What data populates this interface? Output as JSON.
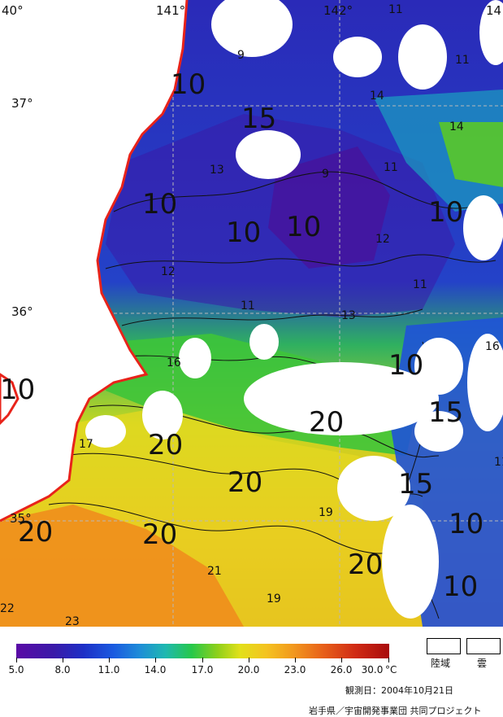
{
  "map": {
    "lon_labels": [
      "40°",
      "141°",
      "142°",
      "14"
    ],
    "lat_labels": [
      "37°",
      "36°",
      "35°"
    ],
    "big_labels": [
      "10",
      "15",
      "10",
      "10",
      "10",
      "10",
      "10",
      "15",
      "20",
      "20",
      "20",
      "15",
      "20",
      "20",
      "20",
      "10",
      "10",
      "10"
    ],
    "iso_labels": [
      "9",
      "14",
      "11",
      "11",
      "13",
      "9",
      "14",
      "11",
      "12",
      "12",
      "11",
      "11",
      "13",
      "16",
      "16",
      "17",
      "19",
      "21",
      "19",
      "22",
      "23",
      "11"
    ],
    "colors": {
      "land": "#ffffff",
      "cloud": "#ffffff",
      "coast": "#e8231a",
      "grid": "#b8b8b8"
    }
  },
  "legend": {
    "ticks": [
      "5.0",
      "8.0",
      "11.0",
      "14.0",
      "17.0",
      "20.0",
      "23.0",
      "26.0",
      "30.0"
    ],
    "unit": "°C",
    "land_label": "陸域",
    "cloud_label": "雲",
    "observation_date": "観測日：2004年10月21日",
    "credit": "岩手県／宇宙開発事業団 共同プロジェクト"
  }
}
